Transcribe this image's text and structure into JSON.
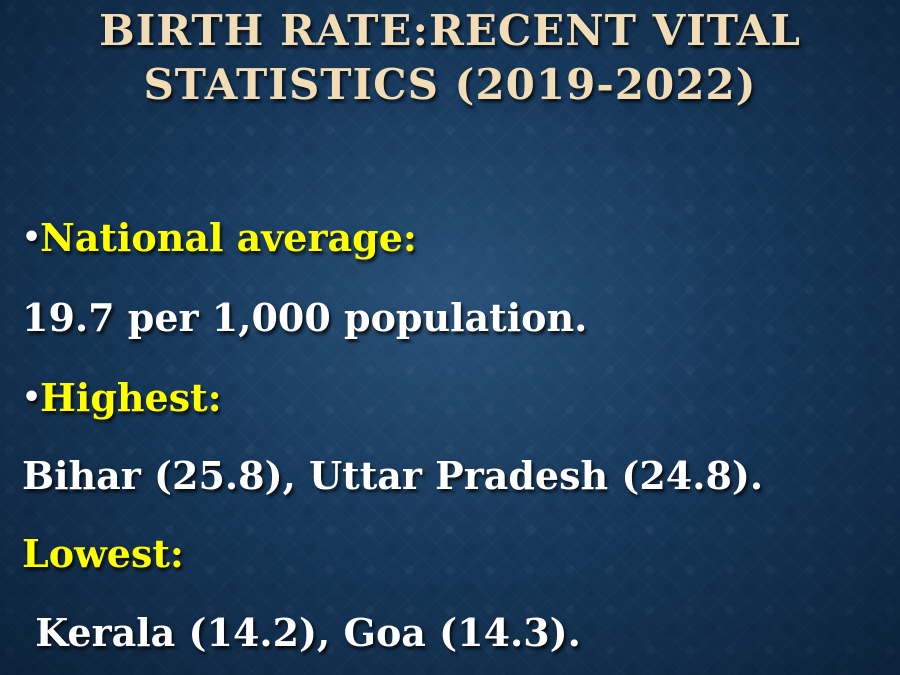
{
  "slide": {
    "title_line1": "BIRTH RATE:RECENT VITAL",
    "title_line2": "STATISTICS (2019-2022)",
    "bullet_glyph": "•",
    "national_label": "National average:",
    "national_value": "19.7 per 1,000 population.",
    "highest_label": "Highest:",
    "highest_value": "Bihar (25.8), Uttar Pradesh (24.8).",
    "lowest_label": "Lowest:",
    "lowest_value": " Kerala (14.2), Goa (14.3).",
    "colors": {
      "title": "#f2dcb5",
      "label": "#ffff00",
      "value": "#ffffff",
      "background": "#143556"
    }
  }
}
